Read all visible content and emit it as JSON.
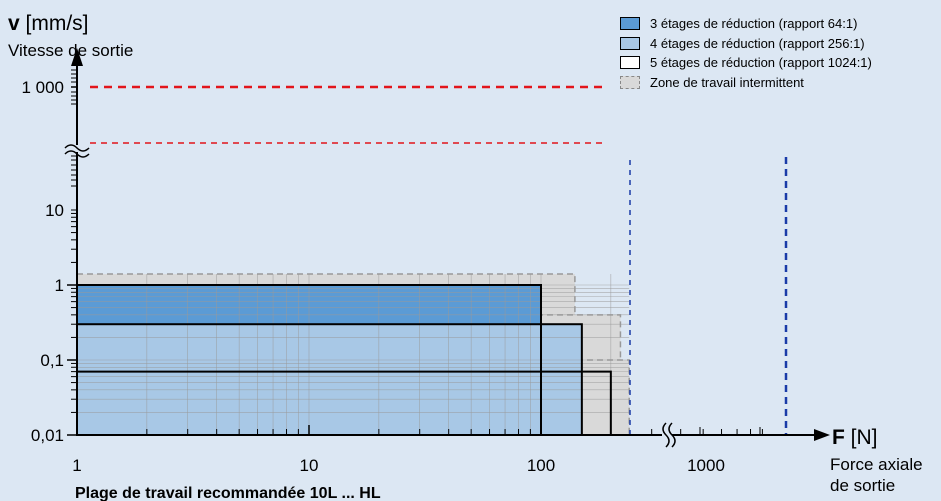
{
  "chart_data": {
    "type": "area",
    "y_axis_title_symbol": "v",
    "y_axis_title_unit": "[mm/s]",
    "y_axis_subtitle": "Vitesse de sortie",
    "x_axis_title_symbol": "F",
    "x_axis_title_unit": "[N]",
    "x_axis_subtitle_line1": "Force axiale",
    "x_axis_subtitle_line2": "de sortie",
    "footer": "Plage de travail recommandée 10L ... HL",
    "x_scale": "log",
    "y_scale": "log",
    "xlim": [
      1,
      300
    ],
    "ylim": [
      0.01,
      1.5
    ],
    "x_ticks": [
      "1",
      "10",
      "100",
      "1000"
    ],
    "y_ticks": [
      "1 000",
      "10",
      "1",
      "0,1",
      "0,01"
    ],
    "axis_break": true,
    "series": [
      {
        "name": "3 étages de réduction (rapport 64:1)",
        "max_force": 100,
        "max_speed": 1,
        "color": "#5b9bd5",
        "style": "fill"
      },
      {
        "name": "4 étages de réduction (rapport 256:1)",
        "max_force": 150,
        "max_speed": 0.3,
        "color": "#a8c8e6",
        "style": "fill"
      },
      {
        "name": "5 étages de réduction (rapport 1024:1)",
        "max_force": 200,
        "max_speed": 0.07,
        "color": "#ffffff",
        "style": "outline"
      }
    ],
    "intermittent_zones": [
      {
        "max_force": 140,
        "max_speed": 1.4
      },
      {
        "max_force": 220,
        "max_speed": 0.4
      },
      {
        "max_force": 240,
        "max_speed": 0.1
      }
    ],
    "intermittent_zone_label": "Zone de travail intermittent",
    "reference_lines": [
      {
        "axis": "y",
        "label": "1 000",
        "color": "#e2151b",
        "style": "dashed"
      },
      {
        "axis": "x",
        "color": "#1a3ba8",
        "style": "dashed"
      },
      {
        "axis": "x",
        "color": "#1a3ba8",
        "style": "dashed"
      }
    ]
  }
}
